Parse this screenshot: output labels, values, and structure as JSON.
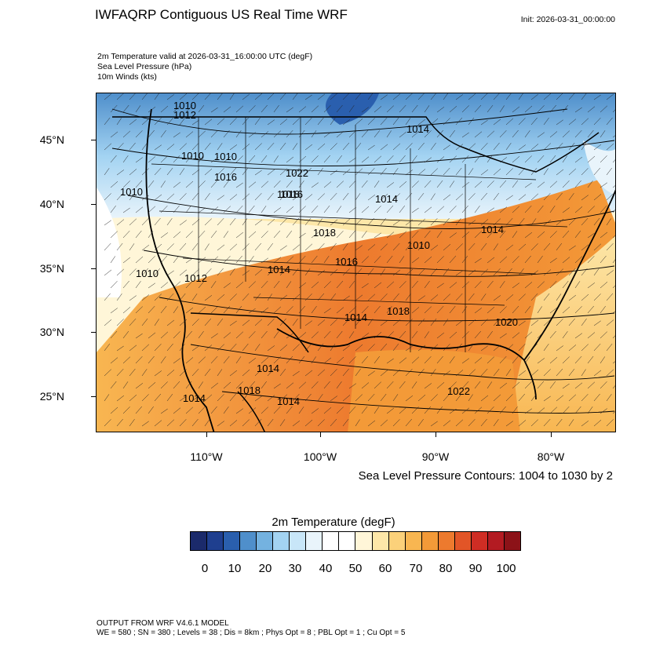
{
  "title": "IWFAQRP Contiguous US Real Time WRF",
  "init": "Init: 2026-03-31_00:00:00",
  "fields": [
    "2m Temperature valid at 2026-03-31_16:00:00 UTC   (degF)",
    "Sea Level Pressure   (hPa)",
    "10m Winds   (kts)"
  ],
  "lat_labels": [
    "45°N",
    "40°N",
    "35°N",
    "30°N",
    "25°N"
  ],
  "lon_labels": [
    "110°W",
    "100°W",
    "90°W",
    "80°W"
  ],
  "contour_note": "Sea Level Pressure Contours: 1004 to 1030 by 2",
  "slp_labels": [
    "1010",
    "1012",
    "1016",
    "1010",
    "1010",
    "1018",
    "1022",
    "1016",
    "1010",
    "1014",
    "1014",
    "1018",
    "1010",
    "1014",
    "1010",
    "1012",
    "1016",
    "1014",
    "1014",
    "1018",
    "1020",
    "1014",
    "1018",
    "1014",
    "1014",
    "1022"
  ],
  "colorbar": {
    "title": "2m Temperature  (degF)",
    "colors": [
      "#1b2a6b",
      "#1f3f8f",
      "#2a5fae",
      "#4f8fcb",
      "#74b2e0",
      "#a3d3f2",
      "#c8e6f8",
      "#e9f4fb",
      "#ffffff",
      "#ffffff",
      "#fff6d8",
      "#fde7a8",
      "#fbd17a",
      "#f8b651",
      "#f39a38",
      "#ed7a2e",
      "#e25527",
      "#cf2d24",
      "#b31b22",
      "#8c1218"
    ],
    "tick_labels": [
      "0",
      "10",
      "20",
      "30",
      "40",
      "50",
      "60",
      "70",
      "80",
      "90",
      "100"
    ]
  },
  "footer": [
    "OUTPUT FROM WRF V4.6.1 MODEL",
    "WE = 580 ; SN = 380 ; Levels = 38 ; Dis = 8km ; Phys Opt = 8 ; PBL Opt = 1 ; Cu Opt = 5"
  ]
}
